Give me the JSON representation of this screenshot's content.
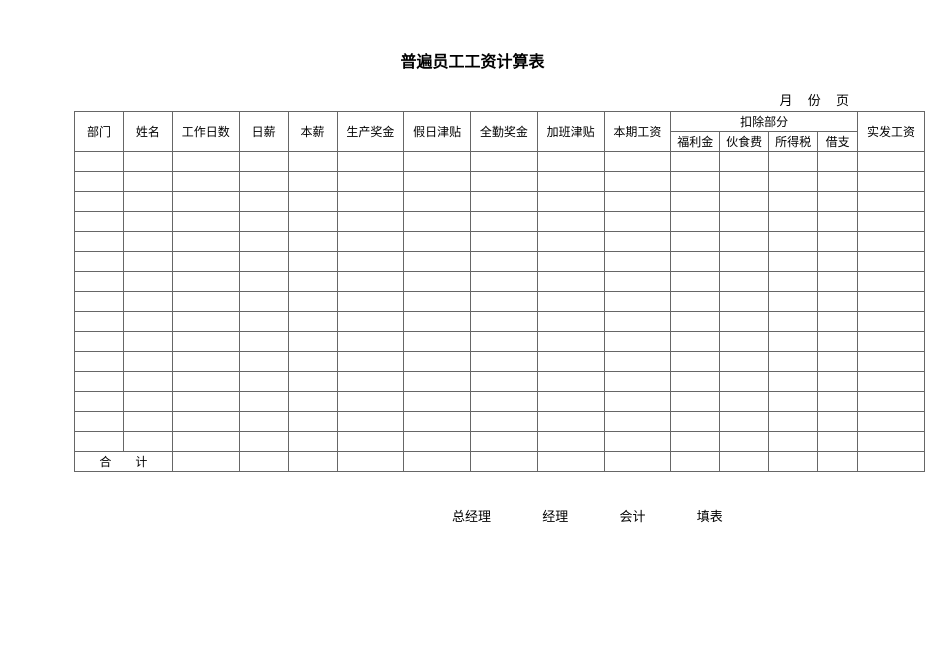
{
  "title": "普遍员工工资计算表",
  "header_line": "月 份 页",
  "table": {
    "columns_main": [
      "部门",
      "姓名",
      "工作日数",
      "日薪",
      "本薪",
      "生产奖金",
      "假日津贴",
      "全勤奖金",
      "加班津贴",
      "本期工资"
    ],
    "deduction_group_label": "扣除部分",
    "deduction_subcols": [
      "福利金",
      "伙食费",
      "所得税",
      "借支"
    ],
    "actual_wage_label": "实发工资",
    "body_row_count": 15,
    "total_row_label": "合　　计",
    "border_color": "#666666",
    "background_color": "#ffffff",
    "header_fontsize": 12,
    "cell_fontsize": 12
  },
  "footer": {
    "roles": [
      "总经理",
      "经理",
      "会计",
      "填表"
    ]
  }
}
